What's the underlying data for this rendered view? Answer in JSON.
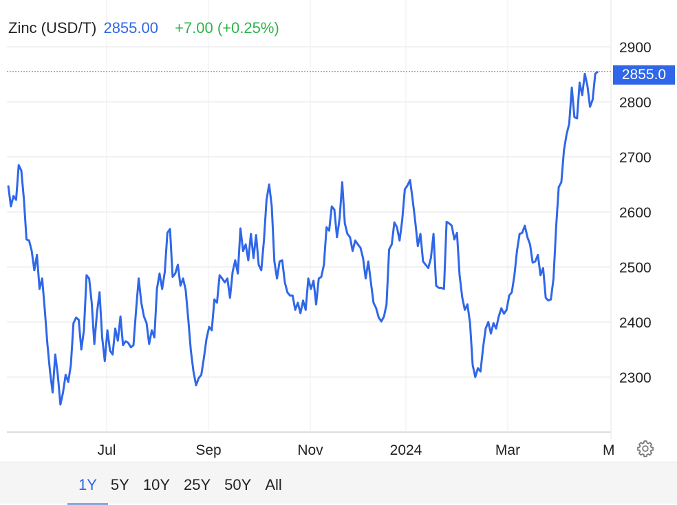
{
  "header": {
    "name": "Zinc (USD/T)",
    "price": "2855.00",
    "change": "+7.00 (+0.25%)"
  },
  "price_tag": "2855.0",
  "range_buttons": [
    {
      "label": "1Y",
      "active": true
    },
    {
      "label": "5Y",
      "active": false
    },
    {
      "label": "10Y",
      "active": false
    },
    {
      "label": "25Y",
      "active": false
    },
    {
      "label": "50Y",
      "active": false
    },
    {
      "label": "All",
      "active": false
    }
  ],
  "icons": {
    "settings": "gear-icon"
  },
  "colors": {
    "line": "#2f67e8",
    "positive": "#2fb24a",
    "grid": "#e6e6e6"
  },
  "chart_data": {
    "type": "line",
    "title": "Zinc (USD/T)",
    "ylim": [
      2200,
      2900
    ],
    "yticks": [
      2300,
      2400,
      2500,
      2600,
      2700,
      2800,
      2900
    ],
    "xticks": [
      "Jul",
      "Sep",
      "Nov",
      "2024",
      "Mar",
      "Ma"
    ],
    "grid": true,
    "last_value": 2855.0,
    "series": [
      {
        "values": [
          2648,
          2610,
          2629,
          2622,
          2685,
          2675,
          2622,
          2550,
          2548,
          2529,
          2494,
          2522,
          2460,
          2479,
          2422,
          2360,
          2310,
          2272,
          2341,
          2304,
          2250,
          2272,
          2304,
          2291,
          2322,
          2398,
          2408,
          2404,
          2350,
          2385,
          2485,
          2479,
          2435,
          2360,
          2416,
          2454,
          2372,
          2329,
          2385,
          2348,
          2341,
          2388,
          2366,
          2410,
          2358,
          2365,
          2362,
          2354,
          2358,
          2422,
          2479,
          2435,
          2410,
          2398,
          2360,
          2385,
          2372,
          2460,
          2488,
          2460,
          2491,
          2562,
          2569,
          2482,
          2488,
          2504,
          2466,
          2479,
          2458,
          2404,
          2348,
          2310,
          2285,
          2298,
          2304,
          2335,
          2370,
          2391,
          2385,
          2441,
          2435,
          2485,
          2479,
          2472,
          2479,
          2444,
          2491,
          2512,
          2488,
          2570,
          2529,
          2541,
          2512,
          2560,
          2516,
          2558,
          2504,
          2494,
          2548,
          2622,
          2650,
          2610,
          2510,
          2479,
          2510,
          2512,
          2472,
          2454,
          2448,
          2448,
          2422,
          2435,
          2416,
          2439,
          2422,
          2479,
          2460,
          2475,
          2432,
          2479,
          2482,
          2504,
          2572,
          2566,
          2610,
          2604,
          2554,
          2588,
          2654,
          2579,
          2560,
          2554,
          2529,
          2548,
          2541,
          2535,
          2516,
          2479,
          2510,
          2472,
          2435,
          2425,
          2408,
          2401,
          2410,
          2432,
          2532,
          2541,
          2581,
          2572,
          2548,
          2585,
          2641,
          2648,
          2658,
          2622,
          2582,
          2538,
          2560,
          2510,
          2504,
          2498,
          2516,
          2560,
          2466,
          2462,
          2462,
          2460,
          2582,
          2579,
          2575,
          2550,
          2562,
          2485,
          2445,
          2422,
          2432,
          2398,
          2322,
          2300,
          2316,
          2310,
          2354,
          2388,
          2400,
          2379,
          2398,
          2388,
          2410,
          2425,
          2415,
          2422,
          2448,
          2454,
          2485,
          2529,
          2560,
          2562,
          2575,
          2554,
          2541,
          2508,
          2510,
          2522,
          2485,
          2498,
          2444,
          2439,
          2441,
          2479,
          2572,
          2645,
          2654,
          2712,
          2741,
          2760,
          2826,
          2772,
          2770,
          2835,
          2812,
          2851,
          2829,
          2791,
          2804,
          2851,
          2855
        ]
      }
    ]
  }
}
